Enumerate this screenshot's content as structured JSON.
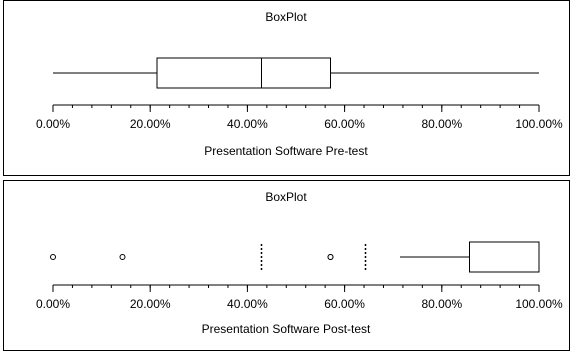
{
  "chart_data": [
    {
      "type": "boxplot",
      "title": "BoxPlot",
      "xlabel": "Presentation Software Pre-test",
      "xlim": [
        0,
        100
      ],
      "tick_labels": [
        "0.00%",
        "20.00%",
        "40.00%",
        "60.00%",
        "80.00%",
        "100.00%"
      ],
      "tick_values": [
        0,
        20,
        40,
        60,
        80,
        100
      ],
      "minor_step": 4,
      "box": {
        "whisker_low": 0,
        "q1": 21.4,
        "median": 42.9,
        "q3": 57.1,
        "whisker_high": 100
      },
      "outliers": [],
      "marks": []
    },
    {
      "type": "boxplot",
      "title": "BoxPlot",
      "xlabel": "Presentation Software Post-test",
      "xlim": [
        0,
        100
      ],
      "tick_labels": [
        "0.00%",
        "20.00%",
        "40.00%",
        "60.00%",
        "80.00%",
        "100.00%"
      ],
      "tick_values": [
        0,
        20,
        40,
        60,
        80,
        100
      ],
      "minor_step": 4,
      "box": {
        "whisker_low": 71.4,
        "q1": 85.7,
        "median": 100,
        "q3": 100,
        "whisker_high": 100
      },
      "outliers": [
        0,
        14.3,
        57.1,
        57.1
      ],
      "marks": [
        42.9,
        64.3
      ]
    }
  ]
}
